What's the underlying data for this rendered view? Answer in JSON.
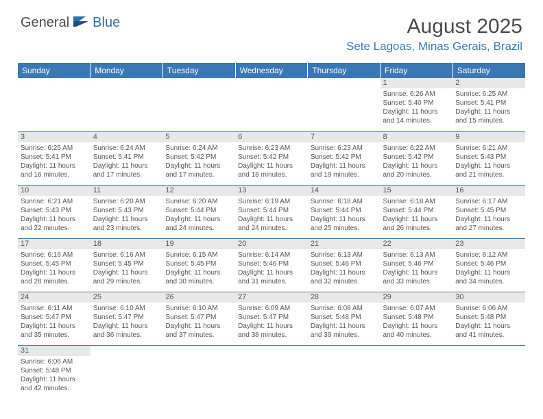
{
  "brand": {
    "part1": "General",
    "part2": "Blue"
  },
  "title": "August 2025",
  "location": "Sete Lagoas, Minas Gerais, Brazil",
  "colors": {
    "header_bg": "#3a78b5",
    "accent": "#2f6fad",
    "daynum_bg": "#e8e8e8",
    "text": "#4a4a4a",
    "page_bg": "#ffffff"
  },
  "daysOfWeek": [
    "Sunday",
    "Monday",
    "Tuesday",
    "Wednesday",
    "Thursday",
    "Friday",
    "Saturday"
  ],
  "weeks": [
    [
      null,
      null,
      null,
      null,
      null,
      {
        "n": "1",
        "sunrise": "6:26 AM",
        "sunset": "5:40 PM",
        "daylight": "11 hours and 14 minutes."
      },
      {
        "n": "2",
        "sunrise": "6:25 AM",
        "sunset": "5:41 PM",
        "daylight": "11 hours and 15 minutes."
      }
    ],
    [
      {
        "n": "3",
        "sunrise": "6:25 AM",
        "sunset": "5:41 PM",
        "daylight": "11 hours and 16 minutes."
      },
      {
        "n": "4",
        "sunrise": "6:24 AM",
        "sunset": "5:41 PM",
        "daylight": "11 hours and 17 minutes."
      },
      {
        "n": "5",
        "sunrise": "6:24 AM",
        "sunset": "5:42 PM",
        "daylight": "11 hours and 17 minutes."
      },
      {
        "n": "6",
        "sunrise": "6:23 AM",
        "sunset": "5:42 PM",
        "daylight": "11 hours and 18 minutes."
      },
      {
        "n": "7",
        "sunrise": "6:23 AM",
        "sunset": "5:42 PM",
        "daylight": "11 hours and 19 minutes."
      },
      {
        "n": "8",
        "sunrise": "6:22 AM",
        "sunset": "5:42 PM",
        "daylight": "11 hours and 20 minutes."
      },
      {
        "n": "9",
        "sunrise": "6:21 AM",
        "sunset": "5:43 PM",
        "daylight": "11 hours and 21 minutes."
      }
    ],
    [
      {
        "n": "10",
        "sunrise": "6:21 AM",
        "sunset": "5:43 PM",
        "daylight": "11 hours and 22 minutes."
      },
      {
        "n": "11",
        "sunrise": "6:20 AM",
        "sunset": "5:43 PM",
        "daylight": "11 hours and 23 minutes."
      },
      {
        "n": "12",
        "sunrise": "6:20 AM",
        "sunset": "5:44 PM",
        "daylight": "11 hours and 24 minutes."
      },
      {
        "n": "13",
        "sunrise": "6:19 AM",
        "sunset": "5:44 PM",
        "daylight": "11 hours and 24 minutes."
      },
      {
        "n": "14",
        "sunrise": "6:18 AM",
        "sunset": "5:44 PM",
        "daylight": "11 hours and 25 minutes."
      },
      {
        "n": "15",
        "sunrise": "6:18 AM",
        "sunset": "5:44 PM",
        "daylight": "11 hours and 26 minutes."
      },
      {
        "n": "16",
        "sunrise": "6:17 AM",
        "sunset": "5:45 PM",
        "daylight": "11 hours and 27 minutes."
      }
    ],
    [
      {
        "n": "17",
        "sunrise": "6:16 AM",
        "sunset": "5:45 PM",
        "daylight": "11 hours and 28 minutes."
      },
      {
        "n": "18",
        "sunrise": "6:16 AM",
        "sunset": "5:45 PM",
        "daylight": "11 hours and 29 minutes."
      },
      {
        "n": "19",
        "sunrise": "6:15 AM",
        "sunset": "5:45 PM",
        "daylight": "11 hours and 30 minutes."
      },
      {
        "n": "20",
        "sunrise": "6:14 AM",
        "sunset": "5:46 PM",
        "daylight": "11 hours and 31 minutes."
      },
      {
        "n": "21",
        "sunrise": "6:13 AM",
        "sunset": "5:46 PM",
        "daylight": "11 hours and 32 minutes."
      },
      {
        "n": "22",
        "sunrise": "6:13 AM",
        "sunset": "5:46 PM",
        "daylight": "11 hours and 33 minutes."
      },
      {
        "n": "23",
        "sunrise": "6:12 AM",
        "sunset": "5:46 PM",
        "daylight": "11 hours and 34 minutes."
      }
    ],
    [
      {
        "n": "24",
        "sunrise": "6:11 AM",
        "sunset": "5:47 PM",
        "daylight": "11 hours and 35 minutes."
      },
      {
        "n": "25",
        "sunrise": "6:10 AM",
        "sunset": "5:47 PM",
        "daylight": "11 hours and 36 minutes."
      },
      {
        "n": "26",
        "sunrise": "6:10 AM",
        "sunset": "5:47 PM",
        "daylight": "11 hours and 37 minutes."
      },
      {
        "n": "27",
        "sunrise": "6:09 AM",
        "sunset": "5:47 PM",
        "daylight": "11 hours and 38 minutes."
      },
      {
        "n": "28",
        "sunrise": "6:08 AM",
        "sunset": "5:48 PM",
        "daylight": "11 hours and 39 minutes."
      },
      {
        "n": "29",
        "sunrise": "6:07 AM",
        "sunset": "5:48 PM",
        "daylight": "11 hours and 40 minutes."
      },
      {
        "n": "30",
        "sunrise": "6:06 AM",
        "sunset": "5:48 PM",
        "daylight": "11 hours and 41 minutes."
      }
    ],
    [
      {
        "n": "31",
        "sunrise": "6:06 AM",
        "sunset": "5:48 PM",
        "daylight": "11 hours and 42 minutes."
      },
      null,
      null,
      null,
      null,
      null,
      null
    ]
  ],
  "labels": {
    "sunrise_prefix": "Sunrise: ",
    "sunset_prefix": "Sunset: ",
    "daylight_prefix": "Daylight: "
  }
}
